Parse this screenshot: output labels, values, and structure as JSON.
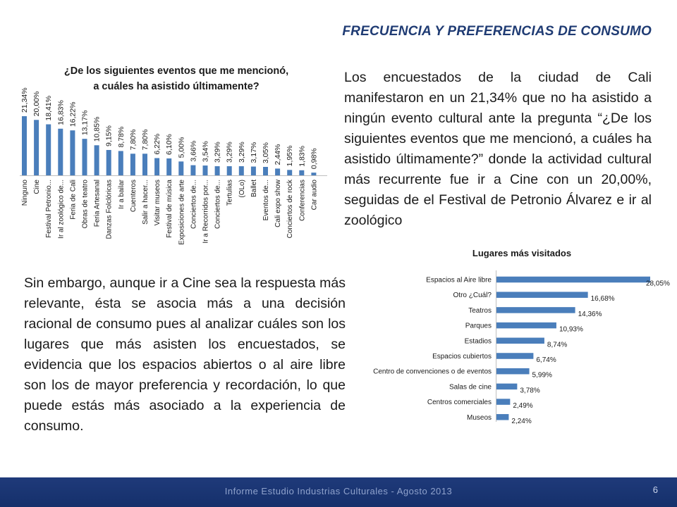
{
  "slide": {
    "title": "FRECUENCIA Y PREFERENCIAS DE CONSUMO",
    "paragraph1": "Los encuestados de la ciudad de Cali manifestaron en un 21,34% que no ha asistido a ningún evento cultural ante la pregunta “¿De los siguientes eventos que me mencionó, a cuáles ha asistido últimamente?” donde la actividad cultural más recurrente fue ir a Cine con un 20,00%, seguidas de el Festival de Petronio Álvarez e ir al zoológico",
    "paragraph2": "Sin embargo, aunque ir a Cine sea la respuesta más relevante, ésta se asocia más a una decisión racional de consumo pues al analizar cuáles son los lugares que más asisten los encuestados, se evidencia que los espacios abiertos o al aire libre son los de mayor preferencia y recordación, lo que puede estás más asociado a la experiencia de consumo.",
    "footer": "Informe Estudio Industrias Culturales  -  Agosto 2013",
    "page_number": "6"
  },
  "colors": {
    "bar": "#4a7ebb",
    "title": "#1f3b73",
    "footer": "#1f3a7a"
  },
  "chart_data": [
    {
      "type": "bar",
      "orientation": "vertical",
      "title_line1": "¿De los siguientes eventos que me mencionó,",
      "title_line2": "a cuáles ha asistido últimamente?",
      "categories": [
        "Ninguno",
        "Cine",
        "Festival Petronio...",
        "Ir al zoológico de...",
        "Feria de Cali",
        "Obras de teatro",
        "Feria Artesanal",
        "Danzas Folclóricas",
        "Ir a bailar",
        "Cuenteros",
        "Salir a hacer...",
        "Visitar museos",
        "Festival de música",
        "Exposiciones de arte",
        "Conciertos de...",
        "Ir a Recorridos por...",
        "Conciertos de...",
        "Tertulias",
        "(OLo)",
        "Ballet",
        "Eventos de...",
        "Cali expo show",
        "Conciertos de rock",
        "Conferencias",
        "Car audio"
      ],
      "values": [
        21.34,
        20.0,
        18.41,
        16.83,
        16.22,
        13.17,
        10.85,
        9.15,
        8.78,
        7.8,
        7.8,
        6.22,
        6.1,
        5.0,
        3.66,
        3.54,
        3.29,
        3.29,
        3.29,
        3.17,
        3.05,
        2.44,
        1.95,
        1.83,
        0.98
      ],
      "labels": [
        "21,34%",
        "20,00%",
        "18,41%",
        "16,83%",
        "16,22%",
        "13,17%",
        "10,85%",
        "9,15%",
        "8,78%",
        "7,80%",
        "7,80%",
        "6,22%",
        "6,10%",
        "5,00%",
        "3,66%",
        "3,54%",
        "3,29%",
        "3,29%",
        "3,29%",
        "3,17%",
        "3,05%",
        "2,44%",
        "1,95%",
        "1,83%",
        "0,98%"
      ],
      "ylim": [
        0,
        22
      ]
    },
    {
      "type": "bar",
      "orientation": "horizontal",
      "title": "Lugares más visitados",
      "categories": [
        "Espacios al Aire libre",
        "Otro ¿Cuál?",
        "Teatros",
        "Parques",
        "Estadios",
        "Espacios cubiertos",
        "Centro de convenciones o de eventos",
        "Salas de cine",
        "Centros comerciales",
        "Museos"
      ],
      "values": [
        28.05,
        16.68,
        14.36,
        10.93,
        8.74,
        6.74,
        5.99,
        3.78,
        2.49,
        2.24
      ],
      "labels": [
        "28,05%",
        "16,68%",
        "14,36%",
        "10,93%",
        "8,74%",
        "6,74%",
        "5,99%",
        "3,78%",
        "2,49%",
        "2,24%"
      ],
      "xlim": [
        0,
        28.05
      ]
    }
  ]
}
